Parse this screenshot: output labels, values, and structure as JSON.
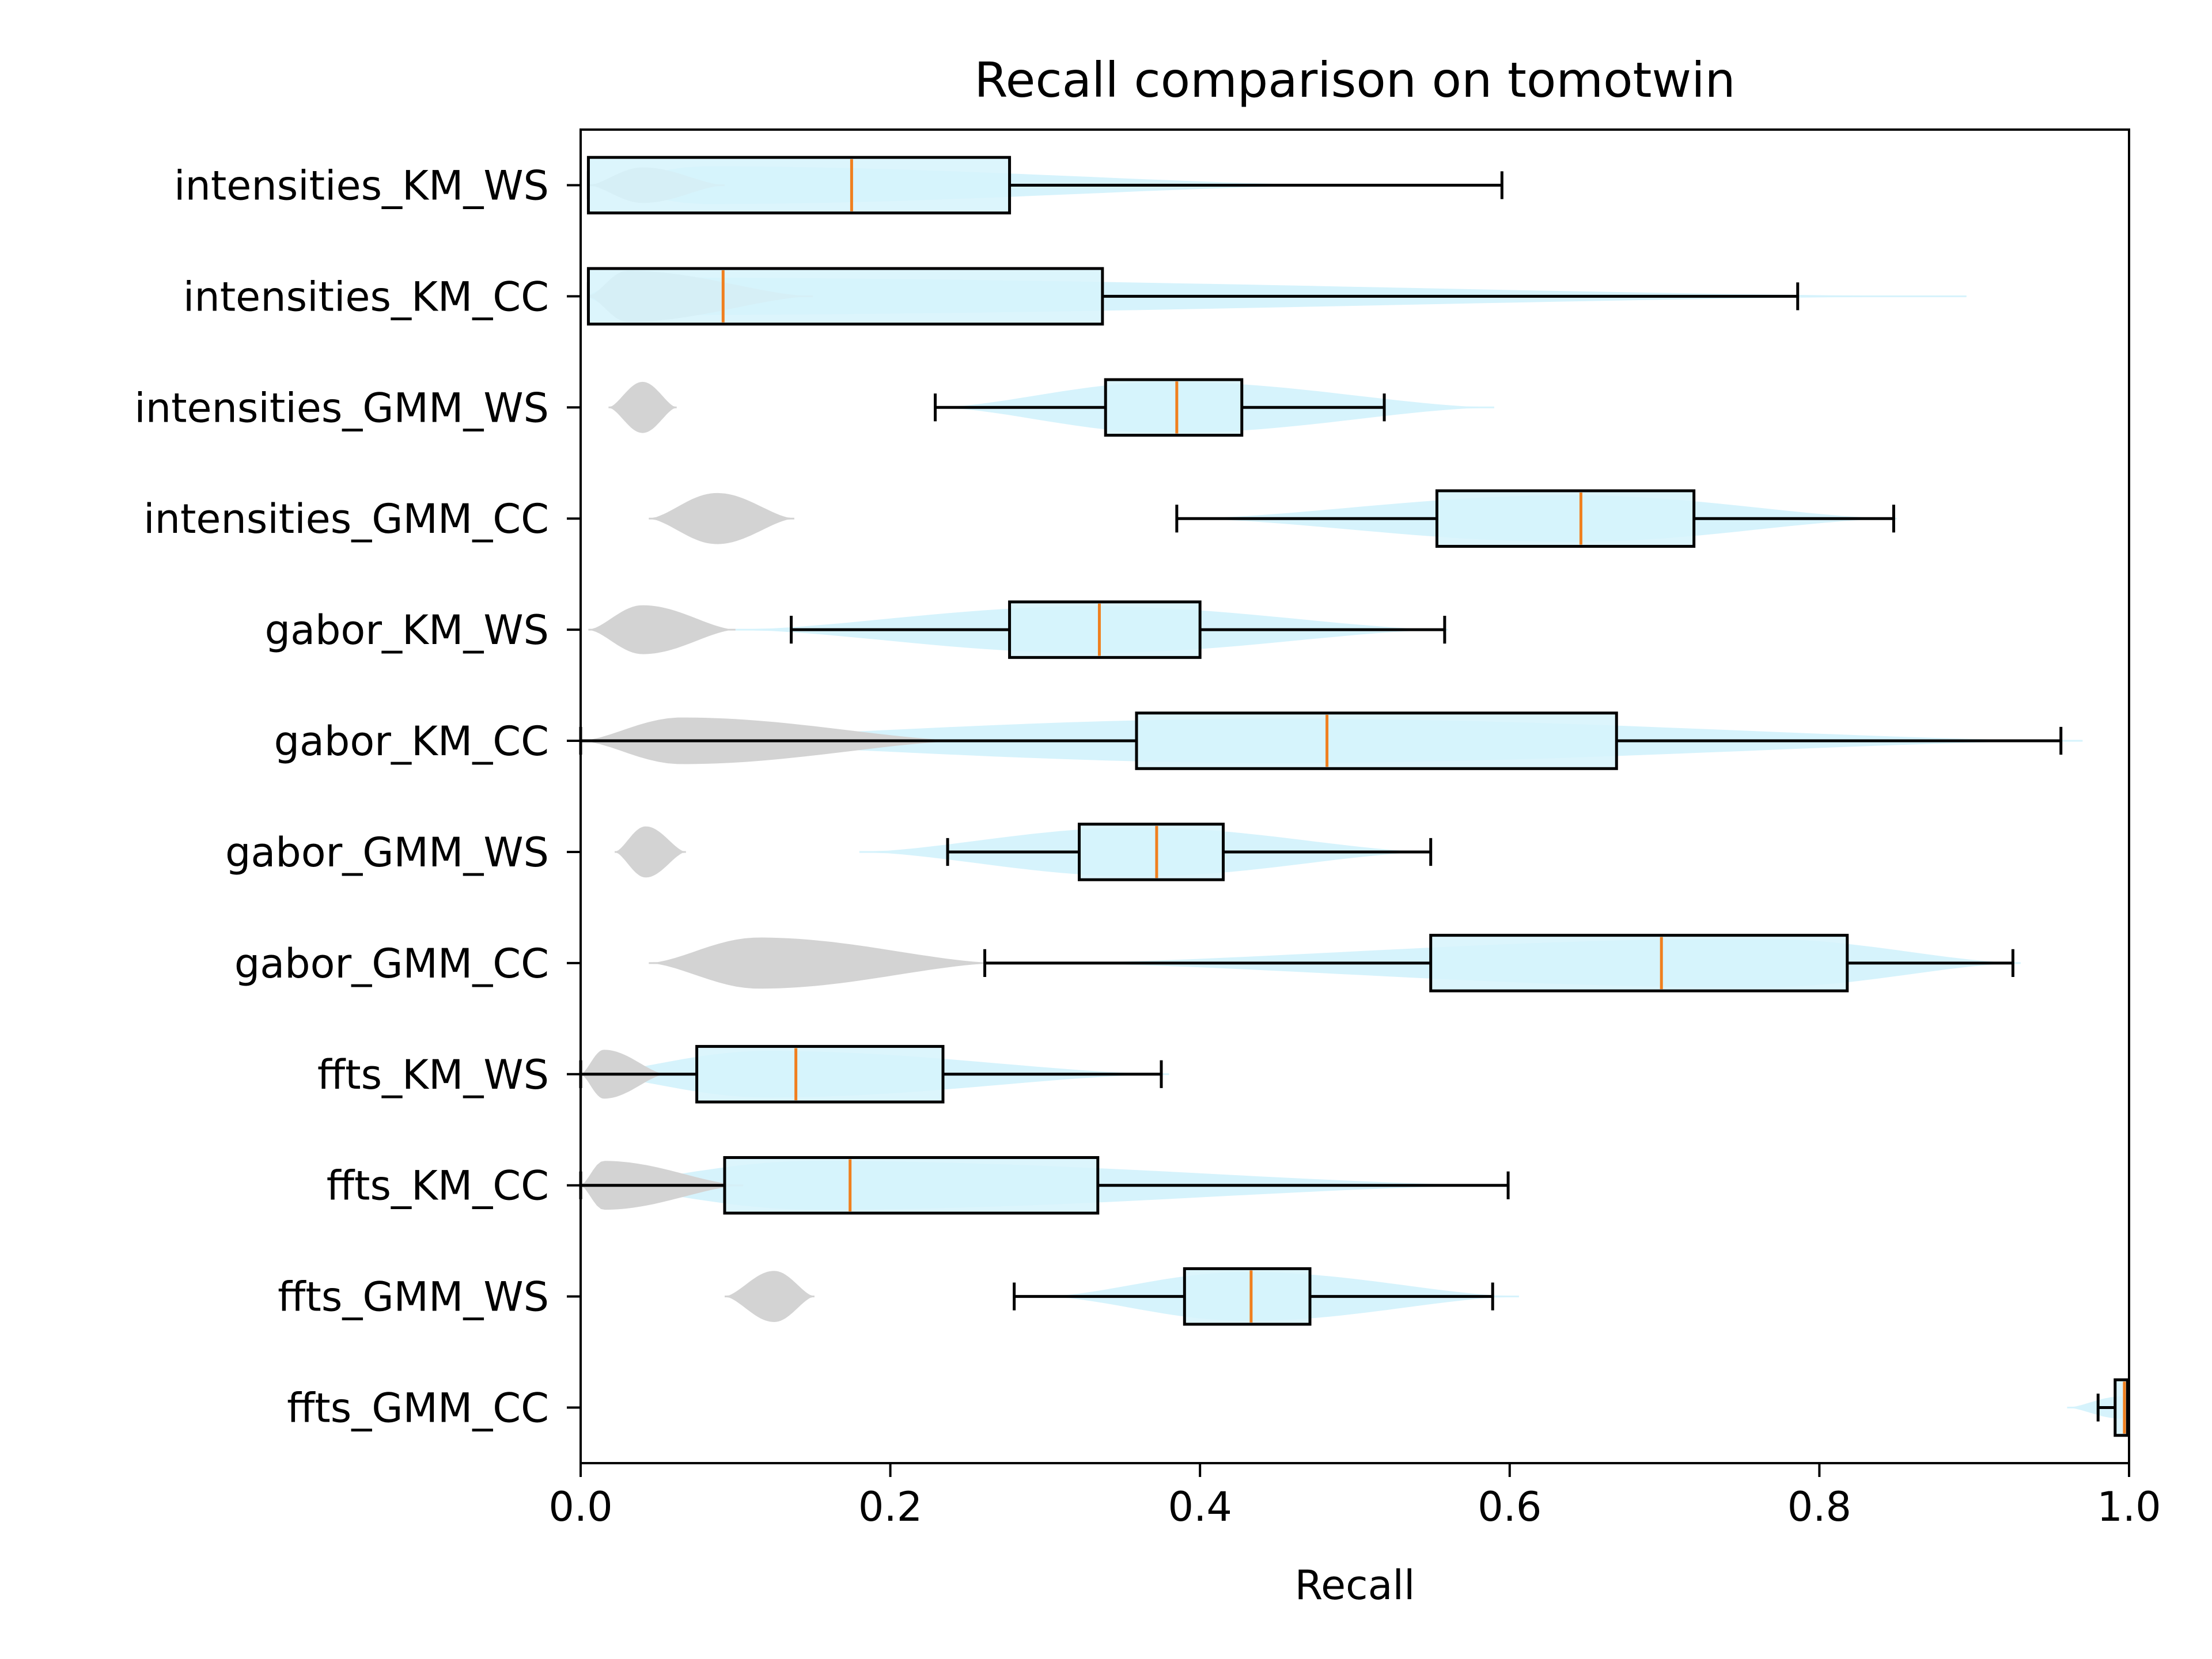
{
  "chart_data": {
    "type": "box",
    "orientation": "horizontal",
    "title": "Recall comparison on tomotwin",
    "xlabel": "Recall",
    "ylabel": "",
    "xlim": [
      0.0,
      1.0
    ],
    "x_ticks": [
      "0.0",
      "0.2",
      "0.4",
      "0.6",
      "0.8",
      "1.0"
    ],
    "grid": false,
    "colors": {
      "box_fill": "#d6f3fc",
      "violin_main": "#d6f3fc",
      "violin_secondary": "#d3d3d3",
      "median": "#f07f1e",
      "edge": "#000000"
    },
    "categories": [
      "intensities_KM_WS",
      "intensities_KM_CC",
      "intensities_GMM_WS",
      "intensities_GMM_CC",
      "gabor_KM_WS",
      "gabor_KM_CC",
      "gabor_GMM_WS",
      "gabor_GMM_CC",
      "ffts_KM_WS",
      "ffts_KM_CC",
      "ffts_GMM_WS",
      "ffts_GMM_CC"
    ],
    "boxes": [
      {
        "whisker_low": 0.005,
        "q1": 0.005,
        "median": 0.175,
        "q3": 0.277,
        "whisker_high": 0.595,
        "violin_main": {
          "min": 0.005,
          "max": 0.5,
          "peak": 0.08,
          "width": 0.34
        },
        "violin_secondary": {
          "min": 0.005,
          "max": 0.093,
          "peak": 0.04,
          "width": 0.32
        }
      },
      {
        "whisker_low": 0.005,
        "q1": 0.005,
        "median": 0.092,
        "q3": 0.337,
        "whisker_high": 0.786,
        "violin_main": {
          "min": 0.005,
          "max": 0.895,
          "peak": 0.02,
          "width": 0.34
        },
        "violin_secondary": {
          "min": 0.005,
          "max": 0.15,
          "peak": 0.03,
          "width": 0.46
        }
      },
      {
        "whisker_low": 0.229,
        "q1": 0.339,
        "median": 0.385,
        "q3": 0.427,
        "whisker_high": 0.519,
        "violin_main": {
          "min": 0.23,
          "max": 0.59,
          "peak": 0.38,
          "width": 0.46
        },
        "violin_secondary": {
          "min": 0.018,
          "max": 0.062,
          "peak": 0.04,
          "width": 0.46
        }
      },
      {
        "whisker_low": 0.385,
        "q1": 0.553,
        "median": 0.646,
        "q3": 0.719,
        "whisker_high": 0.848,
        "violin_main": {
          "min": 0.39,
          "max": 0.85,
          "peak": 0.64,
          "width": 0.42
        },
        "violin_secondary": {
          "min": 0.044,
          "max": 0.138,
          "peak": 0.088,
          "width": 0.46
        }
      },
      {
        "whisker_low": 0.136,
        "q1": 0.277,
        "median": 0.335,
        "q3": 0.4,
        "whisker_high": 0.558,
        "violin_main": {
          "min": 0.1,
          "max": 0.56,
          "peak": 0.33,
          "width": 0.42
        },
        "violin_secondary": {
          "min": 0.005,
          "max": 0.1,
          "peak": 0.04,
          "width": 0.44
        }
      },
      {
        "whisker_low": 0.0,
        "q1": 0.359,
        "median": 0.482,
        "q3": 0.669,
        "whisker_high": 0.956,
        "violin_main": {
          "min": 0.0,
          "max": 0.97,
          "peak": 0.45,
          "width": 0.4
        },
        "violin_secondary": {
          "min": 0.0,
          "max": 0.25,
          "peak": 0.065,
          "width": 0.42
        }
      },
      {
        "whisker_low": 0.237,
        "q1": 0.322,
        "median": 0.372,
        "q3": 0.415,
        "whisker_high": 0.549,
        "violin_main": {
          "min": 0.18,
          "max": 0.55,
          "peak": 0.36,
          "width": 0.44
        },
        "violin_secondary": {
          "min": 0.022,
          "max": 0.068,
          "peak": 0.042,
          "width": 0.46
        }
      },
      {
        "whisker_low": 0.261,
        "q1": 0.549,
        "median": 0.698,
        "q3": 0.818,
        "whisker_high": 0.925,
        "violin_main": {
          "min": 0.3,
          "max": 0.93,
          "peak": 0.76,
          "width": 0.44
        },
        "violin_secondary": {
          "min": 0.044,
          "max": 0.27,
          "peak": 0.115,
          "width": 0.46
        }
      },
      {
        "whisker_low": 0.0,
        "q1": 0.075,
        "median": 0.139,
        "q3": 0.234,
        "whisker_high": 0.375,
        "violin_main": {
          "min": 0.0,
          "max": 0.38,
          "peak": 0.12,
          "width": 0.42
        },
        "violin_secondary": {
          "min": 0.0,
          "max": 0.055,
          "peak": 0.015,
          "width": 0.44
        }
      },
      {
        "whisker_low": 0.0,
        "q1": 0.093,
        "median": 0.174,
        "q3": 0.334,
        "whisker_high": 0.599,
        "violin_main": {
          "min": 0.0,
          "max": 0.6,
          "peak": 0.15,
          "width": 0.44
        },
        "violin_secondary": {
          "min": 0.0,
          "max": 0.105,
          "peak": 0.015,
          "width": 0.44
        }
      },
      {
        "whisker_low": 0.28,
        "q1": 0.39,
        "median": 0.433,
        "q3": 0.471,
        "whisker_high": 0.589,
        "violin_main": {
          "min": 0.3,
          "max": 0.606,
          "peak": 0.43,
          "width": 0.44
        },
        "violin_secondary": {
          "min": 0.093,
          "max": 0.151,
          "peak": 0.125,
          "width": 0.46
        }
      },
      {
        "whisker_low": 0.98,
        "q1": 0.991,
        "median": 0.997,
        "q3": 0.999,
        "whisker_high": 0.999,
        "violin_main": {
          "min": 0.96,
          "max": 1.0,
          "peak": 0.995,
          "width": 0.2
        },
        "violin_secondary": null
      }
    ]
  }
}
